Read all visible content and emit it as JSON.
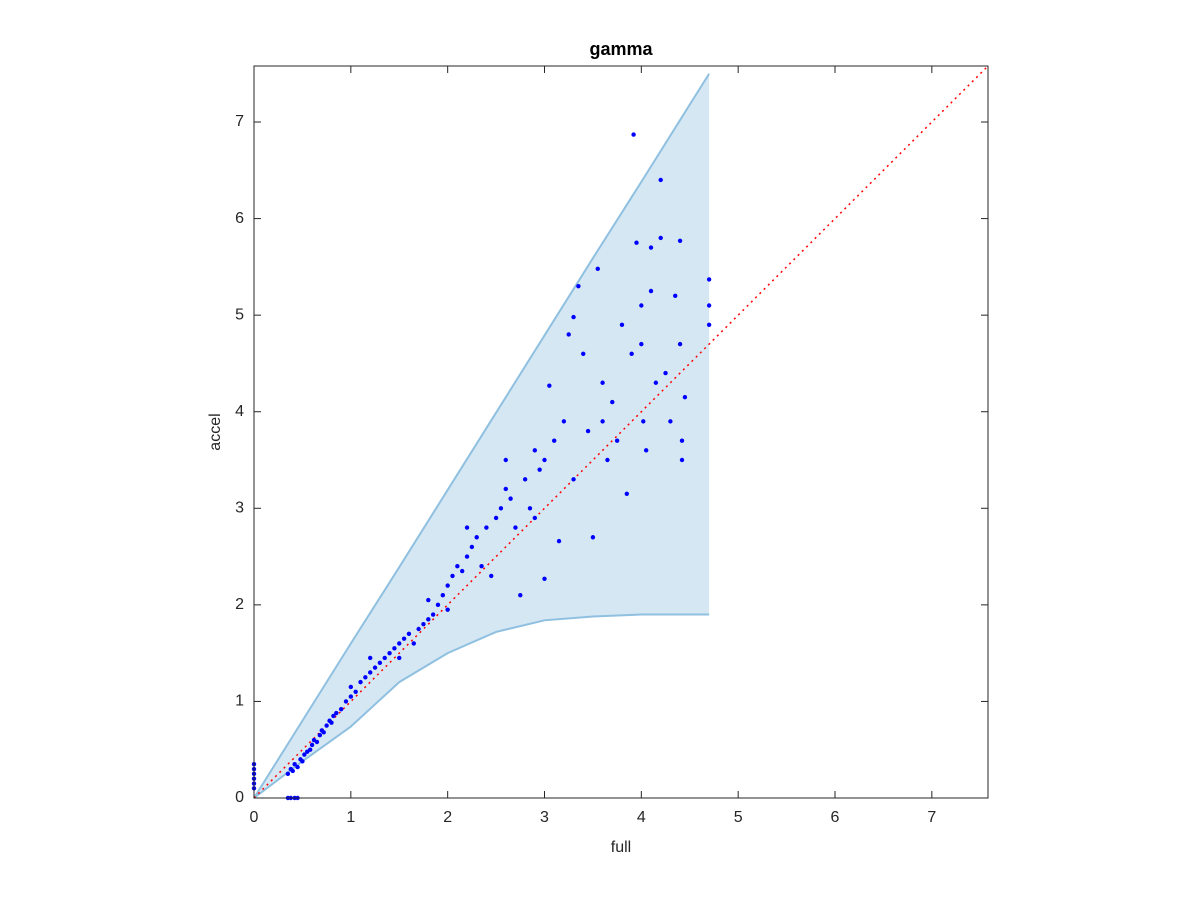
{
  "chart_data": {
    "type": "scatter",
    "title": "gamma",
    "x_label": "full",
    "y_label": "accel",
    "xlim": [
      0,
      7.58
    ],
    "ylim": [
      0,
      7.58
    ],
    "xticks": [
      0,
      1,
      2,
      3,
      4,
      5,
      6,
      7
    ],
    "yticks": [
      0,
      1,
      2,
      3,
      4,
      5,
      6,
      7
    ],
    "color": "#0000ff",
    "band": {
      "color": "#d6e7f4",
      "edge_color": "#8fc0e0",
      "x": [
        0,
        0.5,
        1,
        1.5,
        2,
        2.5,
        3,
        3.5,
        4,
        4.7
      ],
      "lower": [
        0,
        0.38,
        0.74,
        1.2,
        1.5,
        1.72,
        1.84,
        1.88,
        1.9,
        1.9
      ],
      "upper": [
        0,
        0.8,
        1.6,
        2.39,
        3.19,
        3.99,
        4.79,
        5.59,
        6.38,
        7.5
      ]
    },
    "reference_line": {
      "color": "#ff0000",
      "x": [
        0,
        7.58
      ],
      "y": [
        0,
        7.58
      ]
    },
    "x": [
      0,
      0,
      0,
      0,
      0,
      0,
      0.35,
      0.38,
      0.42,
      0.45,
      0.35,
      0.38,
      0.4,
      0.42,
      0.45,
      0.48,
      0.5,
      0.52,
      0.55,
      0.58,
      0.6,
      0.62,
      0.65,
      0.68,
      0.7,
      0.72,
      0.75,
      0.78,
      0.8,
      0.82,
      0.85,
      0.9,
      0.95,
      1.0,
      1.05,
      1.1,
      1.15,
      1.2,
      1.25,
      1.3,
      1.35,
      1.4,
      1.45,
      1.5,
      1.55,
      1.6,
      1.65,
      1.7,
      1.75,
      1.8,
      1.85,
      1.9,
      1.95,
      2.0,
      2.05,
      2.1,
      2.15,
      2.2,
      2.25,
      2.3,
      2.35,
      2.4,
      2.45,
      2.5,
      2.55,
      2.6,
      2.6,
      2.65,
      2.7,
      2.75,
      2.8,
      2.85,
      2.9,
      2.95,
      3.0,
      3.0,
      3.05,
      3.1,
      3.15,
      3.2,
      3.25,
      3.3,
      3.3,
      3.35,
      3.4,
      3.45,
      3.5,
      3.55,
      3.6,
      3.65,
      3.7,
      3.75,
      3.8,
      3.85,
      3.9,
      3.92,
      3.95,
      4.0,
      4.02,
      4.05,
      4.1,
      4.15,
      4.2,
      4.2,
      4.25,
      4.3,
      4.35,
      4.4,
      4.4,
      4.42,
      4.42,
      4.7,
      4.7,
      4.7,
      4.0,
      4.1,
      4.45,
      3.6,
      2.9,
      2.2,
      1.2,
      1.0,
      1.5,
      1.8,
      2.0
    ],
    "y": [
      0.1,
      0.15,
      0.2,
      0.25,
      0.3,
      0.35,
      0,
      0,
      0,
      0,
      0.25,
      0.3,
      0.28,
      0.35,
      0.32,
      0.4,
      0.38,
      0.45,
      0.48,
      0.5,
      0.55,
      0.6,
      0.58,
      0.65,
      0.7,
      0.68,
      0.75,
      0.8,
      0.78,
      0.85,
      0.88,
      0.92,
      1.0,
      1.05,
      1.1,
      1.2,
      1.25,
      1.3,
      1.35,
      1.4,
      1.45,
      1.5,
      1.55,
      1.6,
      1.65,
      1.7,
      1.6,
      1.75,
      1.8,
      1.85,
      1.9,
      2.0,
      2.1,
      2.2,
      2.3,
      2.4,
      2.35,
      2.5,
      2.6,
      2.7,
      2.4,
      2.8,
      2.3,
      2.9,
      3.0,
      3.2,
      3.5,
      3.1,
      2.8,
      2.1,
      3.3,
      3.0,
      2.9,
      3.4,
      2.27,
      3.5,
      4.27,
      3.7,
      2.66,
      3.9,
      4.8,
      4.98,
      3.3,
      5.3,
      4.6,
      3.8,
      2.7,
      5.48,
      4.3,
      3.5,
      4.1,
      3.7,
      4.9,
      3.15,
      4.6,
      6.87,
      5.75,
      4.7,
      3.9,
      3.6,
      5.7,
      4.3,
      5.8,
      6.4,
      4.4,
      3.9,
      5.2,
      5.77,
      4.7,
      3.5,
      3.7,
      5.37,
      5.1,
      4.9,
      5.1,
      5.25,
      4.15,
      3.9,
      3.6,
      2.8,
      1.45,
      1.15,
      1.45,
      2.05,
      1.95
    ]
  }
}
